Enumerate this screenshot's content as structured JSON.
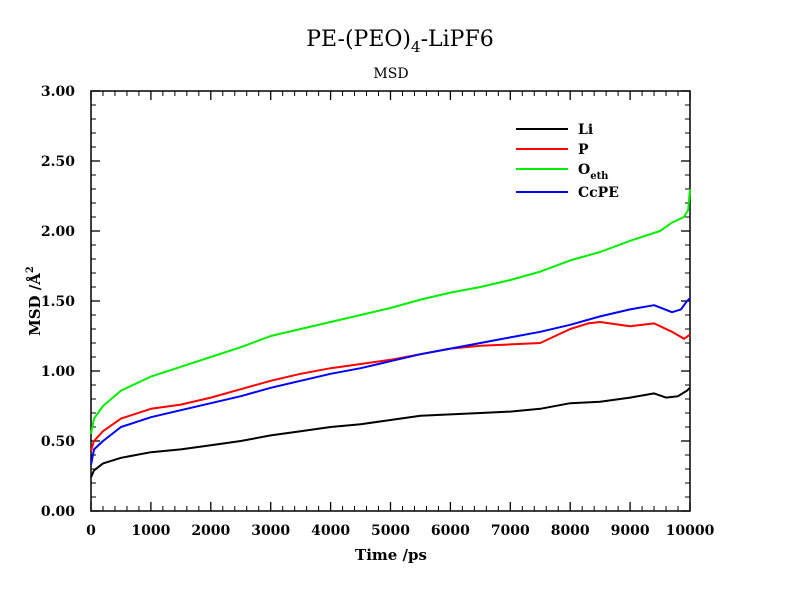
{
  "title": {
    "prefix": "PE-(PEO)",
    "sub": "4",
    "suffix": "-LiPF6"
  },
  "subtitle": "MSD",
  "chart_data": {
    "type": "line",
    "title": "PE-(PEO)4-LiPF6",
    "subtitle": "MSD",
    "xlabel": "Time /ps",
    "ylabel": {
      "main": "MSD /",
      "unit": "Å",
      "sup": "2"
    },
    "xlim": [
      0,
      10000
    ],
    "ylim": [
      0,
      3
    ],
    "x_ticks": [
      0,
      1000,
      2000,
      3000,
      4000,
      5000,
      6000,
      7000,
      8000,
      9000,
      10000
    ],
    "y_ticks": [
      "0.00",
      "0.50",
      "1.00",
      "1.50",
      "2.00",
      "2.50",
      "3.00"
    ],
    "grid": false,
    "legend_position": "top-right",
    "series": [
      {
        "name": "Li",
        "name_sub": "",
        "color": "#000000",
        "x": [
          0,
          50,
          200,
          500,
          1000,
          1500,
          2000,
          2500,
          3000,
          3500,
          4000,
          4500,
          5000,
          5500,
          6000,
          6500,
          7000,
          7500,
          8000,
          8500,
          9000,
          9400,
          9600,
          9800,
          9950,
          10000
        ],
        "y": [
          0.24,
          0.29,
          0.34,
          0.38,
          0.42,
          0.44,
          0.47,
          0.5,
          0.54,
          0.57,
          0.6,
          0.62,
          0.65,
          0.68,
          0.69,
          0.7,
          0.71,
          0.73,
          0.77,
          0.78,
          0.81,
          0.84,
          0.81,
          0.82,
          0.86,
          0.88
        ]
      },
      {
        "name": "P",
        "name_sub": "",
        "color": "#ff0000",
        "x": [
          0,
          50,
          200,
          500,
          1000,
          1500,
          2000,
          2500,
          3000,
          3500,
          4000,
          4500,
          5000,
          5500,
          6000,
          6500,
          7000,
          7500,
          8000,
          8300,
          8500,
          9000,
          9400,
          9700,
          9900,
          10000
        ],
        "y": [
          0.43,
          0.5,
          0.57,
          0.66,
          0.73,
          0.76,
          0.81,
          0.87,
          0.93,
          0.98,
          1.02,
          1.05,
          1.08,
          1.12,
          1.16,
          1.18,
          1.19,
          1.2,
          1.3,
          1.34,
          1.35,
          1.32,
          1.34,
          1.28,
          1.23,
          1.26
        ]
      },
      {
        "name": "O",
        "name_sub": "eth",
        "color": "#00ee00",
        "x": [
          0,
          50,
          200,
          500,
          1000,
          1500,
          2000,
          2500,
          3000,
          3500,
          4000,
          4500,
          5000,
          5500,
          6000,
          6500,
          7000,
          7500,
          8000,
          8500,
          9000,
          9500,
          9700,
          9900,
          9970,
          10000
        ],
        "y": [
          0.55,
          0.66,
          0.75,
          0.86,
          0.96,
          1.03,
          1.1,
          1.17,
          1.25,
          1.3,
          1.35,
          1.4,
          1.45,
          1.51,
          1.56,
          1.6,
          1.65,
          1.71,
          1.79,
          1.85,
          1.93,
          2.0,
          2.06,
          2.1,
          2.15,
          2.3
        ]
      },
      {
        "name": "CcPE",
        "name_sub": "",
        "color": "#0000ff",
        "x": [
          0,
          50,
          200,
          500,
          1000,
          1500,
          2000,
          2500,
          3000,
          3500,
          4000,
          4500,
          5000,
          5500,
          6000,
          6500,
          7000,
          7500,
          8000,
          8500,
          9000,
          9400,
          9700,
          9850,
          9950,
          10000
        ],
        "y": [
          0.33,
          0.44,
          0.5,
          0.6,
          0.67,
          0.72,
          0.77,
          0.82,
          0.88,
          0.93,
          0.98,
          1.02,
          1.07,
          1.12,
          1.16,
          1.2,
          1.24,
          1.28,
          1.33,
          1.39,
          1.44,
          1.47,
          1.42,
          1.44,
          1.5,
          1.52
        ]
      }
    ]
  }
}
